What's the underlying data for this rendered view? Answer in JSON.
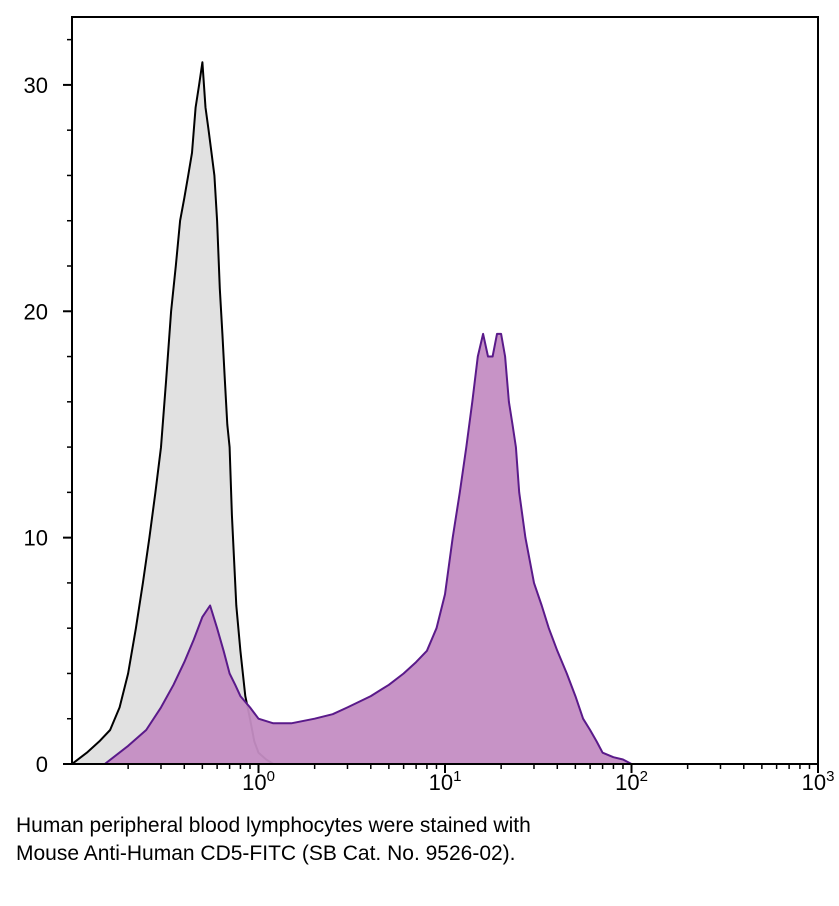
{
  "chart_data": {
    "type": "area",
    "x_scale": "log",
    "xlim": [
      0.1,
      1000
    ],
    "ylim": [
      0,
      33
    ],
    "grid": false,
    "legend": "none",
    "x_ticks": [
      {
        "value": 1,
        "base": "10",
        "exp": "0"
      },
      {
        "value": 10,
        "base": "10",
        "exp": "1"
      },
      {
        "value": 100,
        "base": "10",
        "exp": "2"
      },
      {
        "value": 1000,
        "base": "10",
        "exp": "3"
      }
    ],
    "y_ticks": [
      {
        "value": 0,
        "label": "0"
      },
      {
        "value": 10,
        "label": "10"
      },
      {
        "value": 20,
        "label": "20"
      },
      {
        "value": 30,
        "label": "30"
      }
    ],
    "series": [
      {
        "fill": "#e1e1e1",
        "stroke": "#000000",
        "x": [
          0.1,
          0.12,
          0.14,
          0.16,
          0.18,
          0.2,
          0.22,
          0.24,
          0.26,
          0.28,
          0.3,
          0.32,
          0.34,
          0.36,
          0.38,
          0.4,
          0.42,
          0.44,
          0.46,
          0.48,
          0.5,
          0.52,
          0.54,
          0.56,
          0.58,
          0.6,
          0.62,
          0.64,
          0.66,
          0.68,
          0.7,
          0.72,
          0.74,
          0.76,
          0.8,
          0.85,
          0.9,
          0.95,
          1.0,
          1.1,
          1.2
        ],
        "values": [
          0,
          0.5,
          1,
          1.5,
          2.5,
          4,
          6,
          8,
          10,
          12,
          14,
          17,
          20,
          22,
          24,
          25,
          26,
          27,
          29,
          30,
          31,
          29,
          28,
          27,
          26,
          24,
          21,
          19,
          17,
          15,
          14,
          11,
          9,
          7,
          5,
          3,
          2,
          1,
          0.5,
          0.2,
          0
        ]
      },
      {
        "fill": "#c48dc3",
        "stroke": "#5a1a8a",
        "x": [
          0.15,
          0.2,
          0.25,
          0.3,
          0.35,
          0.4,
          0.45,
          0.5,
          0.55,
          0.6,
          0.65,
          0.7,
          0.75,
          0.8,
          0.9,
          1.0,
          1.2,
          1.5,
          2,
          2.5,
          3,
          4,
          5,
          6,
          7,
          8,
          9,
          10,
          11,
          12,
          13,
          14,
          15,
          16,
          17,
          18,
          19,
          20,
          21,
          22,
          23,
          24,
          25,
          27,
          30,
          33,
          36,
          40,
          45,
          50,
          55,
          60,
          65,
          70,
          80,
          90,
          100
        ],
        "values": [
          0,
          0.8,
          1.5,
          2.5,
          3.5,
          4.5,
          5.5,
          6.5,
          7,
          6,
          5,
          4,
          3.5,
          3,
          2.5,
          2,
          1.8,
          1.8,
          2,
          2.2,
          2.5,
          3,
          3.5,
          4,
          4.5,
          5,
          6,
          7.5,
          10,
          12,
          14,
          16,
          18,
          19,
          18,
          18,
          19,
          19,
          18,
          16,
          15,
          14,
          12,
          10,
          8,
          7,
          6,
          5,
          4,
          3,
          2,
          1.5,
          1,
          0.5,
          0.3,
          0.2,
          0
        ]
      }
    ]
  },
  "caption": {
    "line1": "Human peripheral blood lymphocytes were stained with",
    "line2": "Mouse Anti-Human CD5-FITC (SB Cat. No. 9526-02)."
  }
}
